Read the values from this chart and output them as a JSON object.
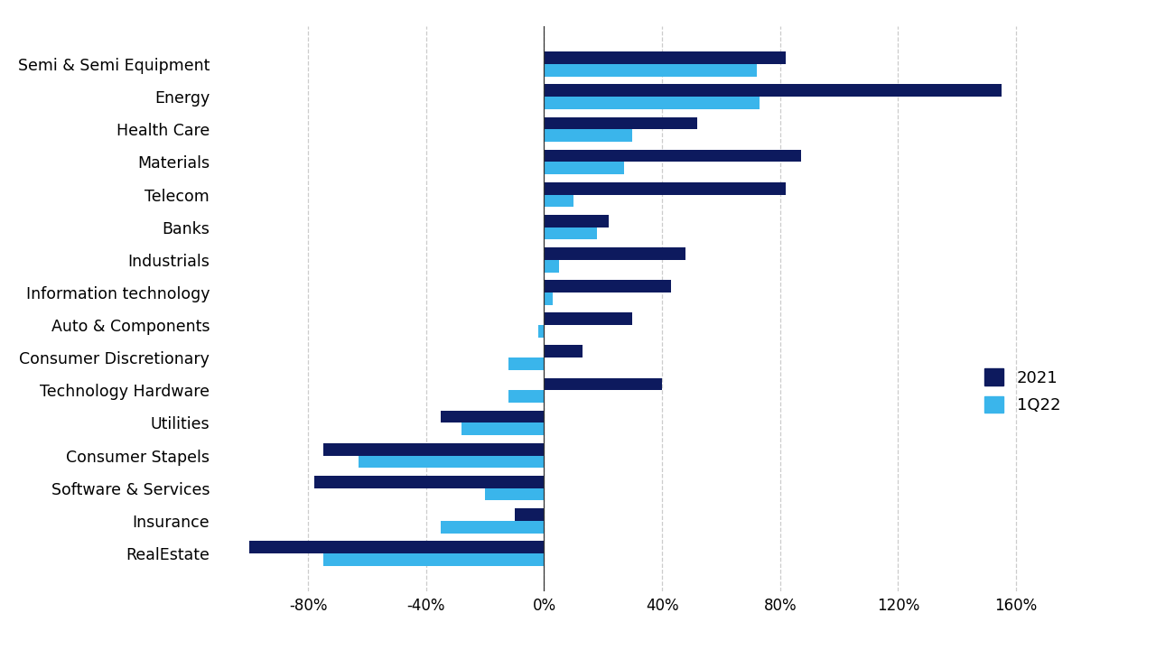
{
  "categories": [
    "Semi & Semi Equipment",
    "Energy",
    "Health Care",
    "Materials",
    "Telecom",
    "Banks",
    "Industrials",
    "Information technology",
    "Auto & Components",
    "Consumer Discretionary",
    "Technology Hardware",
    "Utilities",
    "Consumer Stapels",
    "Software & Services",
    "Insurance",
    "RealEstate"
  ],
  "values_2021": [
    82,
    155,
    52,
    87,
    82,
    22,
    48,
    43,
    30,
    13,
    40,
    -35,
    -75,
    -78,
    -10,
    -100
  ],
  "values_1Q22": [
    72,
    73,
    30,
    27,
    10,
    18,
    5,
    3,
    -2,
    -12,
    -12,
    -28,
    -63,
    -20,
    -35,
    -75
  ],
  "color_2021": "#0d1a5e",
  "color_1Q22": "#3ab5eb",
  "background_color": "#ffffff",
  "xlim_left": -110,
  "xlim_right": 180,
  "xtick_values": [
    -80,
    -40,
    0,
    40,
    80,
    120,
    160
  ],
  "xtick_labels": [
    "-80%",
    "-40%",
    "0%",
    "40%",
    "80%",
    "120%",
    "160%"
  ],
  "legend_labels": [
    "2021",
    "1Q22"
  ],
  "bar_height": 0.38,
  "grid_color": "#cccccc",
  "grid_linestyle": "--"
}
